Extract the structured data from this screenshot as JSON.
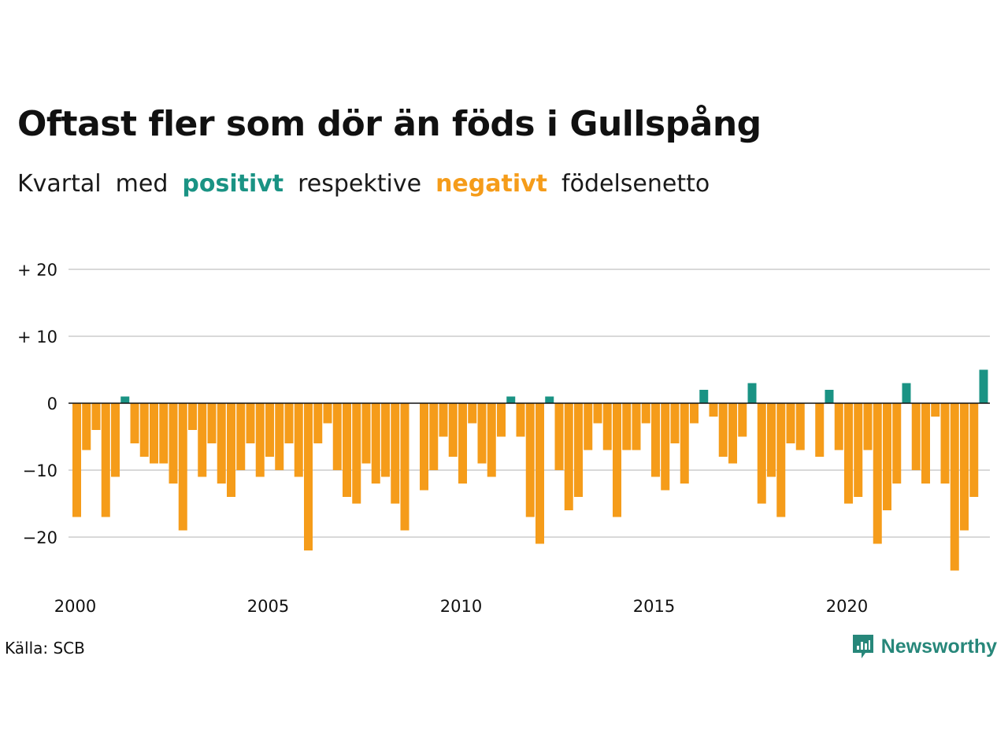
{
  "title": "Oftast fler som dör än föds i Gullspång",
  "subtitle": {
    "w1": "Kvartal",
    "w2": "med",
    "positive_word": "positivt",
    "w3": "respektive",
    "negative_word": "negativt",
    "w4": "födelsenetto"
  },
  "colors": {
    "positive": "#1a9384",
    "negative": "#f59c1a",
    "grid": "#d9d9d9",
    "zero_line": "#111111"
  },
  "source": "Källa: SCB",
  "brand": {
    "name": "Newsworthy",
    "icon": "bar-chart-icon"
  },
  "chart_data": {
    "type": "bar",
    "title": "Oftast fler som dör än föds i Gullspång",
    "xlabel": "",
    "ylabel": "",
    "ylim": [
      -27,
      20
    ],
    "y_ticks": [
      20,
      10,
      0,
      -10,
      -20
    ],
    "y_tick_labels": [
      "+ 20",
      "+ 10",
      "0",
      "−10",
      "−20"
    ],
    "x_tick_labels": [
      "2000",
      "2005",
      "2010",
      "2015",
      "2020"
    ],
    "start_year": 2000,
    "grid": true,
    "legend": "none",
    "values": [
      -17,
      -7,
      -4,
      -17,
      -11,
      1,
      -6,
      -8,
      -9,
      -9,
      -12,
      -19,
      -4,
      -11,
      -6,
      -12,
      -14,
      -10,
      -6,
      -11,
      -8,
      -10,
      -6,
      -11,
      -22,
      -6,
      -3,
      -10,
      -14,
      -15,
      -9,
      -12,
      -11,
      -15,
      -19,
      0,
      -13,
      -10,
      -5,
      -8,
      -12,
      -3,
      -9,
      -11,
      -5,
      1,
      -5,
      -17,
      -21,
      1,
      -10,
      -16,
      -14,
      -7,
      -3,
      -7,
      -17,
      -7,
      -7,
      -3,
      -11,
      -13,
      -6,
      -12,
      -3,
      2,
      -2,
      -8,
      -9,
      -5,
      3,
      -15,
      -11,
      -17,
      -6,
      -7,
      0,
      -8,
      2,
      -7,
      -15,
      -14,
      -7,
      -21,
      -16,
      -12,
      3,
      -10,
      -12,
      -2,
      -12,
      -25,
      -19,
      -14,
      5
    ]
  }
}
